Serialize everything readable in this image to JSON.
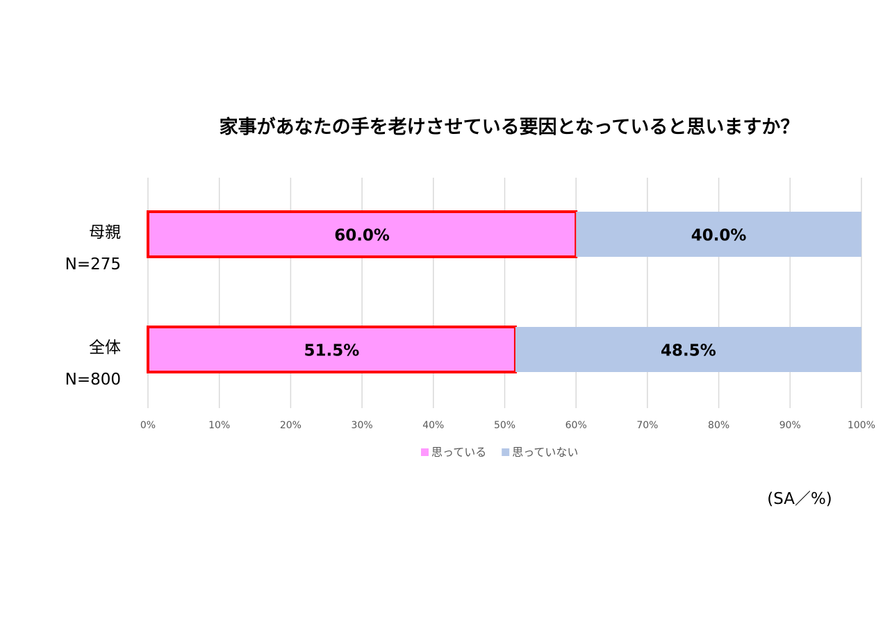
{
  "chart_data": {
    "type": "bar",
    "orientation": "horizontal",
    "stacked": true,
    "title": "家事があなたの手を老けさせている要因となっていると思いますか？",
    "categories": [
      {
        "label": "母親",
        "n_label": "N=275"
      },
      {
        "label": "全体",
        "n_label": "N=800"
      }
    ],
    "series": [
      {
        "name": "思っている",
        "values": [
          60.0,
          51.5
        ],
        "data_labels": [
          "60.0%",
          "51.5%"
        ],
        "color": "#ff99ff",
        "highlight_border": "#ff0000"
      },
      {
        "name": "思っていない",
        "values": [
          40.0,
          48.5
        ],
        "data_labels": [
          "40.0%",
          "48.5%"
        ],
        "color": "#b4c7e7"
      }
    ],
    "xlim": [
      0,
      100
    ],
    "x_ticks": [
      "0%",
      "10%",
      "20%",
      "30%",
      "40%",
      "50%",
      "60%",
      "70%",
      "80%",
      "90%",
      "100%"
    ],
    "grid": true,
    "gridline_color": "#d9d9d9",
    "legend_position": "bottom",
    "note": "(SA／%)"
  }
}
